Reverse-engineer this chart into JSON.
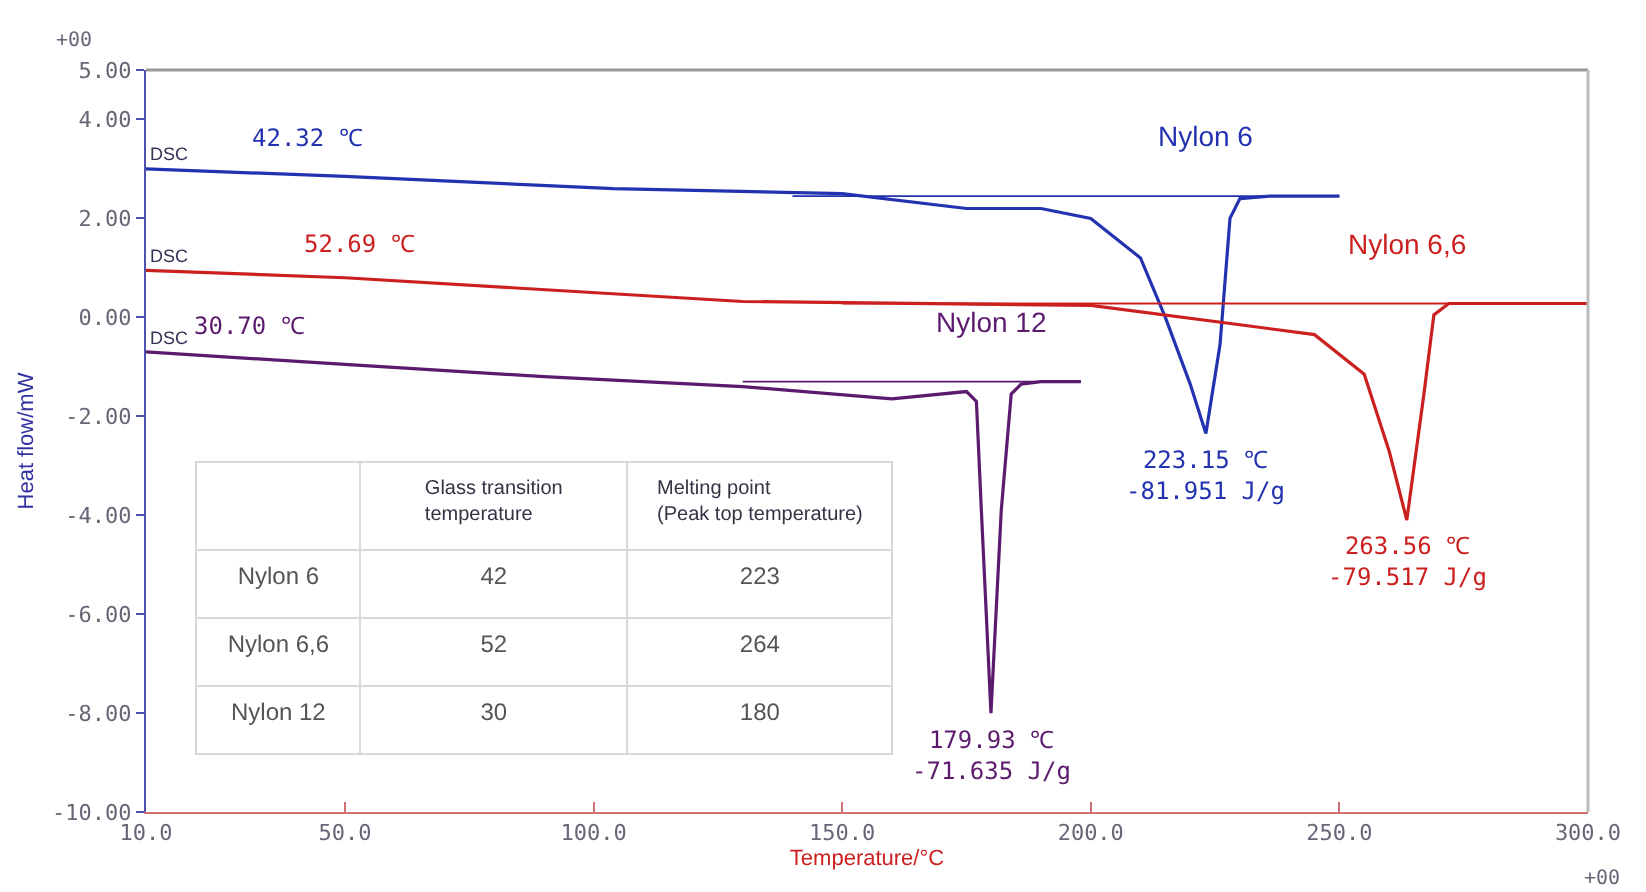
{
  "chart_data": {
    "type": "line",
    "xlabel": "Temperature/°C",
    "ylabel": "Heat flow/mW",
    "xlim": [
      10,
      300
    ],
    "xticks": [
      {
        "value": 10,
        "label": "10.0"
      },
      {
        "value": 50,
        "label": "50.0"
      },
      {
        "value": 100,
        "label": "100.0"
      },
      {
        "value": 150,
        "label": "150.0"
      },
      {
        "value": 200,
        "label": "200.0"
      },
      {
        "value": 250,
        "label": "250.0"
      },
      {
        "value": 300,
        "label": "300.0"
      }
    ],
    "ylim": [
      -10,
      5
    ],
    "yticks": [
      {
        "value": -10,
        "label": "-10.00"
      },
      {
        "value": -8,
        "label": "-8.00"
      },
      {
        "value": -6,
        "label": "-6.00"
      },
      {
        "value": -4,
        "label": "-4.00"
      },
      {
        "value": -2,
        "label": "-2.00"
      },
      {
        "value": 0,
        "label": "0.00"
      },
      {
        "value": 2,
        "label": "2.00"
      },
      {
        "value": 4,
        "label": "4.00"
      },
      {
        "value": 5,
        "label": "5.00"
      }
    ],
    "legend": false,
    "marker": "none",
    "line_style": "solid",
    "series": [
      {
        "name": "Nylon 6",
        "color": "#2232b0",
        "x": [
          10,
          50,
          104,
          150,
          175,
          190,
          200,
          210,
          215,
          220,
          223.15,
          226,
          228,
          230,
          236,
          250
        ],
        "values": [
          3.0,
          2.85,
          2.6,
          2.5,
          2.2,
          2.2,
          2.0,
          1.2,
          0.0,
          -1.35,
          -2.35,
          -0.55,
          2.0,
          2.4,
          2.45,
          2.45
        ]
      },
      {
        "name": "Nylon 6,6",
        "color": "#cc2020",
        "x": [
          10,
          50,
          130,
          200,
          230,
          245,
          255,
          260,
          263.56,
          267,
          269,
          272,
          300
        ],
        "values": [
          0.95,
          0.8,
          0.32,
          0.24,
          -0.15,
          -0.35,
          -1.15,
          -2.7,
          -4.1,
          -1.55,
          0.05,
          0.28,
          0.28
        ]
      },
      {
        "name": "Nylon 12",
        "color": "#5c1a6e",
        "x": [
          10,
          50,
          90,
          130,
          160,
          175,
          177,
          178,
          179.93,
          182,
          184,
          186,
          190,
          198
        ],
        "values": [
          -0.7,
          -0.95,
          -1.2,
          -1.4,
          -1.65,
          -1.5,
          -1.7,
          -3.9,
          -8.0,
          -3.9,
          -1.55,
          -1.35,
          -1.3,
          -1.3
        ]
      },
      {
        "color": "#2232b0",
        "x": [
          140,
          250
        ],
        "values": [
          2.45,
          2.45
        ]
      },
      {
        "color": "#cc2020",
        "x": [
          150,
          300
        ],
        "values": [
          0.28,
          0.28
        ]
      },
      {
        "color": "#5c1a6e",
        "x": [
          130,
          198
        ],
        "values": [
          -1.3,
          -1.3
        ]
      }
    ],
    "annotations": [
      "+00",
      "+00",
      "Glass transition\ntemperature",
      "Melting point\n(Peak top temperature)",
      "Nylon 6",
      "42",
      "223",
      "Nylon 6,6",
      "52",
      "264",
      "Nylon 12",
      "30",
      "180",
      {
        "text": "DSC",
        "x": 10,
        "y": 3.0
      },
      {
        "text": "DSC",
        "x": 10,
        "y": 0.95
      },
      {
        "text": "DSC",
        "x": 10,
        "y": -0.7
      },
      {
        "text": "42.32 ℃",
        "x": 42.32,
        "y": 2.95
      },
      {
        "text": "52.69 ℃",
        "x": 52.69,
        "y": 0.78
      },
      {
        "text": "30.70 ℃",
        "x": 30.7,
        "y": -0.85
      },
      {
        "text": "223.15 ℃\n-81.951 J/g",
        "x": 223.15,
        "y": -2.35
      },
      {
        "text": "263.56 ℃\n-79.517 J/g",
        "x": 263.56,
        "y": -4.1
      },
      {
        "text": "179.93 ℃\n-71.635 J/g",
        "x": 179.93,
        "y": -8.0
      }
    ]
  }
}
